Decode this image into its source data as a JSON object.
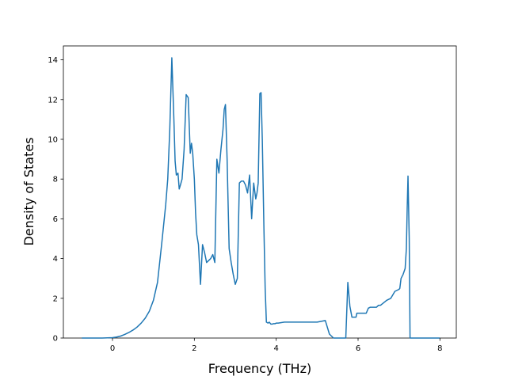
{
  "chart_data": {
    "type": "line",
    "xlabel": "Frequency (THz)",
    "ylabel": "Density of States",
    "xlim": [
      -1.2,
      8.4
    ],
    "ylim": [
      0,
      14.7
    ],
    "xticks": [
      0,
      2,
      4,
      6,
      8
    ],
    "yticks": [
      0,
      2,
      4,
      6,
      8,
      10,
      12,
      14
    ],
    "grid": false,
    "line_color": "#1f77b4",
    "series": [
      {
        "x": [
          -0.75,
          -0.5,
          -0.25,
          0.0,
          0.1,
          0.2,
          0.3,
          0.4,
          0.5,
          0.6,
          0.7,
          0.8,
          0.9,
          1.0,
          1.1,
          1.2,
          1.3,
          1.35,
          1.4,
          1.45,
          1.5,
          1.53,
          1.56,
          1.6,
          1.63,
          1.66,
          1.7,
          1.75,
          1.8,
          1.85,
          1.9,
          1.93,
          1.96,
          2.0,
          2.03,
          2.06,
          2.1,
          2.15,
          2.2,
          2.25,
          2.3,
          2.35,
          2.4,
          2.45,
          2.5,
          2.55,
          2.6,
          2.65,
          2.7,
          2.73,
          2.76,
          2.8,
          2.85,
          2.9,
          2.95,
          3.0,
          3.05,
          3.1,
          3.15,
          3.2,
          3.25,
          3.3,
          3.35,
          3.4,
          3.45,
          3.5,
          3.53,
          3.56,
          3.6,
          3.63,
          3.66,
          3.7,
          3.73,
          3.76,
          3.8,
          3.83,
          3.87,
          3.9,
          3.93,
          3.97,
          4.0,
          4.05,
          4.2,
          4.3,
          4.4,
          5.0,
          5.2,
          5.3,
          5.4,
          5.6,
          5.65,
          5.7,
          5.75,
          5.8,
          5.85,
          5.9,
          5.92,
          5.95,
          5.97,
          6.0,
          6.05,
          6.2,
          6.25,
          6.3,
          6.45,
          6.5,
          6.55,
          6.7,
          6.75,
          6.8,
          6.9,
          6.95,
          7.0,
          7.02,
          7.05,
          7.1,
          7.15,
          7.18,
          7.2,
          7.22,
          7.25,
          7.27,
          7.3,
          7.5,
          8.0
        ],
        "y": [
          0,
          0,
          0,
          0.02,
          0.05,
          0.1,
          0.18,
          0.28,
          0.4,
          0.55,
          0.75,
          1.0,
          1.35,
          1.9,
          2.8,
          4.7,
          6.7,
          8.0,
          10.5,
          14.1,
          11.0,
          8.9,
          8.2,
          8.3,
          7.5,
          7.7,
          8.0,
          9.5,
          12.25,
          12.1,
          9.3,
          9.8,
          9.3,
          8.0,
          6.3,
          5.2,
          4.7,
          2.7,
          4.7,
          4.3,
          3.8,
          3.9,
          4.0,
          4.2,
          3.8,
          9.0,
          8.3,
          9.5,
          10.5,
          11.5,
          11.75,
          9.0,
          4.5,
          3.8,
          3.2,
          2.7,
          3.0,
          7.8,
          7.9,
          7.9,
          7.7,
          7.3,
          8.2,
          6.0,
          7.8,
          7.0,
          7.3,
          7.8,
          12.3,
          12.35,
          10.0,
          5.5,
          2.5,
          0.8,
          0.75,
          0.8,
          0.7,
          0.7,
          0.72,
          0.72,
          0.75,
          0.75,
          0.8,
          0.8,
          0.8,
          0.8,
          0.88,
          0.2,
          0,
          0,
          0,
          0,
          2.8,
          1.6,
          1.05,
          1.05,
          1.05,
          1.05,
          1.25,
          1.25,
          1.25,
          1.25,
          1.5,
          1.55,
          1.55,
          1.65,
          1.65,
          1.9,
          1.95,
          2.0,
          2.35,
          2.4,
          2.45,
          2.5,
          3.0,
          3.2,
          3.5,
          4.5,
          6.5,
          8.15,
          5.0,
          0,
          0,
          0,
          0
        ]
      }
    ]
  }
}
